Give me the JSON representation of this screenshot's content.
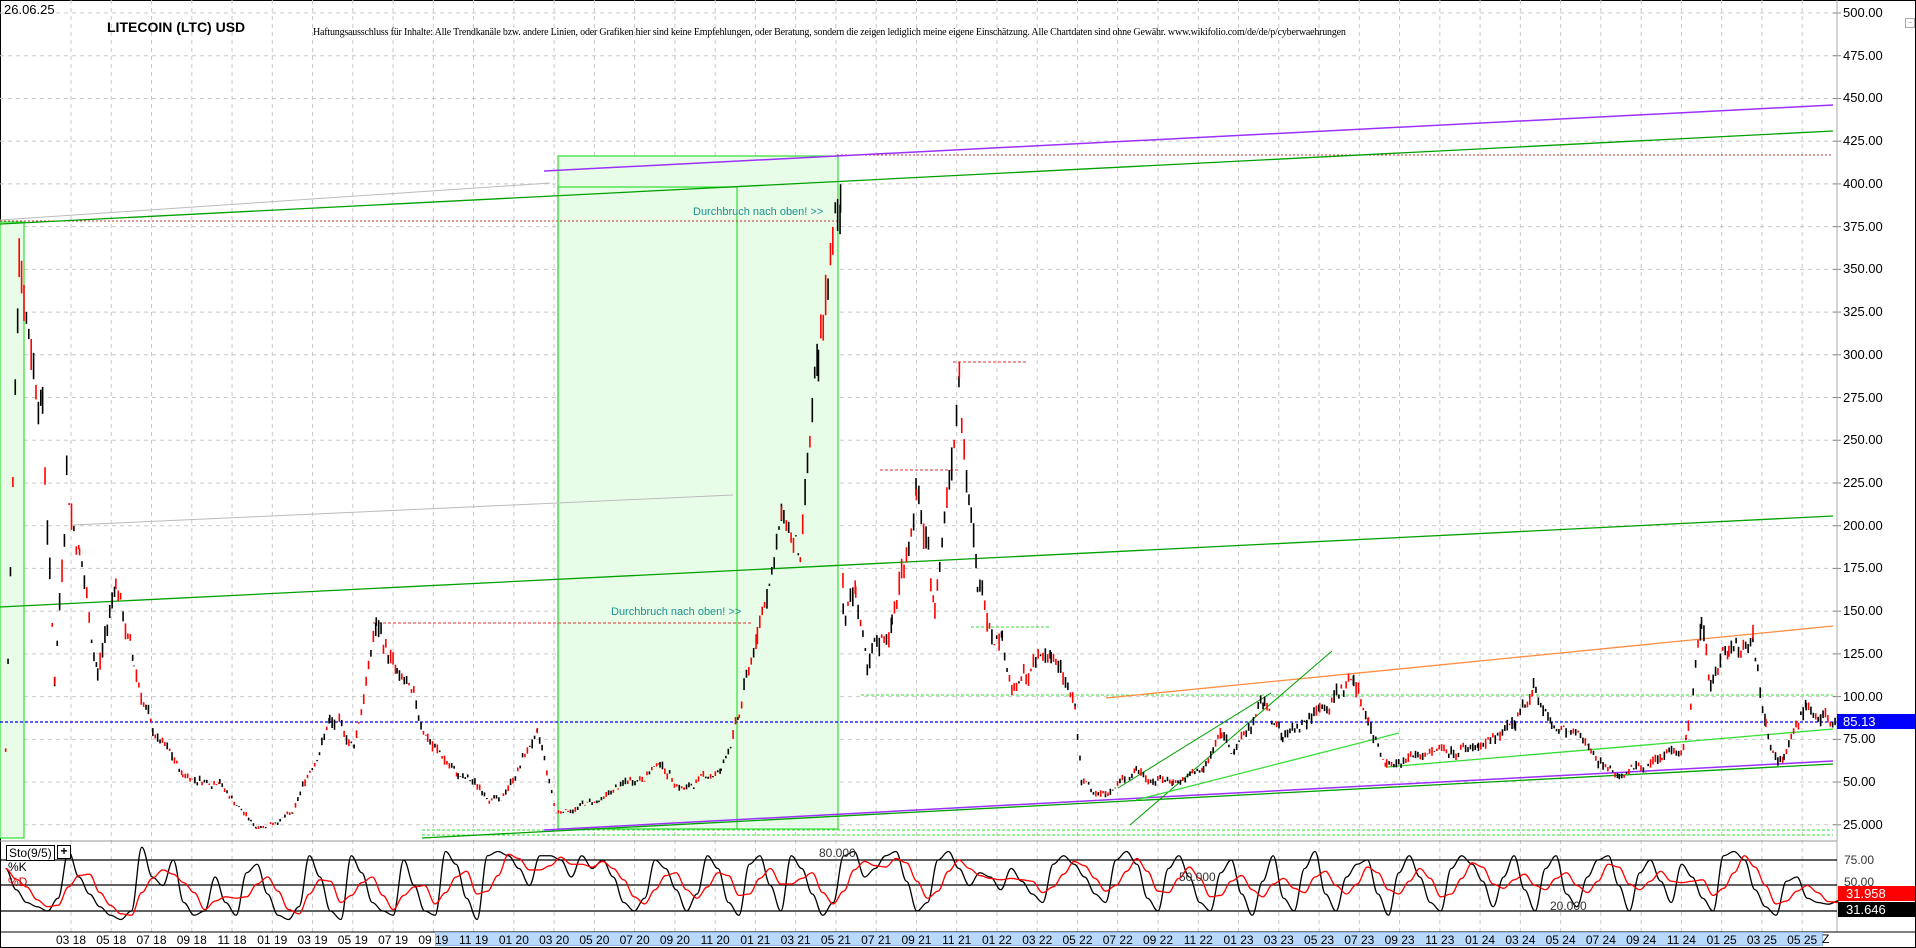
{
  "header": {
    "date": "26.06.25",
    "title": "LITECOIN (LTC) USD",
    "disclaimer": "Haftungsausschluss für Inhalte: Alle Trendkanäle bzw. andere Linien, oder Grafiken hier sind keine Empfehlungen, oder Beratung, sondern die zeigen lediglich meine eigene Einschätzung. Alle Chartdaten sind ohne Gewähr.  www.wikifolio.com/de/de/p/cyberwaehrungen"
  },
  "annotations": {
    "breakout_1": "Durchbruch nach oben! >>",
    "breakout_2": "Durchbruch nach oben! >>"
  },
  "colors": {
    "up_bar": "#000000",
    "down_bar": "#ff0000",
    "last_price": "#0000ff",
    "trend_green": "#00a000",
    "trend_purple": "#9b30ff",
    "trend_orange": "#ff8c40",
    "zone_fill": "#e8fde8",
    "resistance_red": "#e03030"
  },
  "chart_data": [
    {
      "type": "ohlc",
      "ylim": [
        25,
        500
      ],
      "y_tick_labels": [
        "500.00",
        "475.00",
        "450.00",
        "425.00",
        "400.00",
        "375.00",
        "350.00",
        "325.00",
        "300.00",
        "275.00",
        "250.00",
        "225.00",
        "200.00",
        "175.00",
        "150.00",
        "125.00",
        "100.00",
        "75.00",
        "50.00",
        "25.000"
      ],
      "y_tick_values": [
        500,
        475,
        450,
        425,
        400,
        375,
        350,
        325,
        300,
        275,
        250,
        225,
        200,
        175,
        150,
        125,
        100,
        75,
        50,
        25
      ],
      "x_tick_labels": [
        "03 18",
        "05 18",
        "07 18",
        "09 18",
        "11 18",
        "01 19",
        "03 19",
        "05 19",
        "07 19",
        "09 19",
        "11 19",
        "01 20",
        "03 20",
        "05 20",
        "07 20",
        "09 20",
        "11 20",
        "01 21",
        "03 21",
        "05 21",
        "07 21",
        "09 21",
        "11 21",
        "01 22",
        "03 22",
        "05 22",
        "07 22",
        "09 22",
        "11 22",
        "01 23",
        "03 23",
        "05 23",
        "07 23",
        "09 23",
        "11 23",
        "01 24",
        "03 24",
        "05 24",
        "07 24",
        "09 24",
        "11 24",
        "01 25",
        "03 25",
        "05 25"
      ],
      "x_end_label": "Z",
      "grid": true,
      "last_price": "85.13",
      "price_path": [
        [
          "2017-11-24",
          68
        ],
        [
          "2017-12-14",
          361
        ],
        [
          "2018-01-19",
          271
        ],
        [
          "2018-02-07",
          107
        ],
        [
          "2018-02-25",
          232
        ],
        [
          "2018-03-14",
          186
        ],
        [
          "2018-04-11",
          114
        ],
        [
          "2018-05-08",
          168
        ],
        [
          "2018-06-05",
          118
        ],
        [
          "2018-07-03",
          79
        ],
        [
          "2018-08-18",
          54
        ],
        [
          "2018-10-13",
          50
        ],
        [
          "2018-12-07",
          23
        ],
        [
          "2019-02-02",
          32
        ],
        [
          "2019-03-27",
          86
        ],
        [
          "2019-05-03",
          71
        ],
        [
          "2019-06-06",
          142
        ],
        [
          "2019-07-07",
          114
        ],
        [
          "2019-08-23",
          75
        ],
        [
          "2019-10-08",
          54
        ],
        [
          "2019-12-12",
          39
        ],
        [
          "2020-02-06",
          79
        ],
        [
          "2020-03-04",
          32
        ],
        [
          "2020-05-08",
          39
        ],
        [
          "2020-08-09",
          61
        ],
        [
          "2020-09-15",
          46
        ],
        [
          "2020-11-10",
          57
        ],
        [
          "2020-12-07",
          89
        ],
        [
          "2021-01-04",
          136
        ],
        [
          "2021-02-10",
          207
        ],
        [
          "2021-03-08",
          179
        ],
        [
          "2021-04-05",
          293
        ],
        [
          "2021-05-08",
          386
        ],
        [
          "2021-05-12",
          150
        ],
        [
          "2021-05-31",
          164
        ],
        [
          "2021-06-18",
          114
        ],
        [
          "2021-07-25",
          143
        ],
        [
          "2021-09-01",
          221
        ],
        [
          "2021-09-29",
          150
        ],
        [
          "2021-11-05",
          293
        ],
        [
          "2021-11-23",
          207
        ],
        [
          "2021-12-02",
          164
        ],
        [
          "2022-01-09",
          136
        ],
        [
          "2022-01-27",
          104
        ],
        [
          "2022-03-22",
          125
        ],
        [
          "2022-04-28",
          93
        ],
        [
          "2022-05-07",
          50
        ],
        [
          "2022-06-13",
          43
        ],
        [
          "2022-07-29",
          57
        ],
        [
          "2022-09-24",
          50
        ],
        [
          "2022-11-09",
          57
        ],
        [
          "2022-12-06",
          79
        ],
        [
          "2022-12-25",
          68
        ],
        [
          "2023-02-10",
          96
        ],
        [
          "2023-03-07",
          75
        ],
        [
          "2023-05-02",
          93
        ],
        [
          "2023-06-23",
          111
        ],
        [
          "2023-07-15",
          86
        ],
        [
          "2023-08-12",
          61
        ],
        [
          "2023-10-16",
          68
        ],
        [
          "2023-12-29",
          71
        ],
        [
          "2024-02-24",
          82
        ],
        [
          "2024-03-21",
          107
        ],
        [
          "2024-04-18",
          82
        ],
        [
          "2024-06-13",
          71
        ],
        [
          "2024-07-29",
          54
        ],
        [
          "2024-10-02",
          64
        ],
        [
          "2024-11-08",
          75
        ],
        [
          "2024-12-01",
          143
        ],
        [
          "2024-12-15",
          107
        ],
        [
          "2025-01-12",
          129
        ],
        [
          "2025-02-18",
          136
        ],
        [
          "2025-03-07",
          86
        ],
        [
          "2025-04-04",
          64
        ],
        [
          "2025-05-07",
          96
        ],
        [
          "2025-05-29",
          86
        ],
        [
          "2025-06-26",
          85
        ]
      ]
    },
    {
      "type": "line",
      "title": "Sto(9/5)",
      "series": [
        {
          "name": "%K",
          "last_value": "31.646"
        },
        {
          "name": "%D",
          "last_value": "31.958"
        }
      ],
      "levels": [
        "80.000",
        "50.000",
        "20.000"
      ],
      "y_tick_labels": [
        "75.00",
        "50.00"
      ],
      "k_values": [
        70,
        45,
        30,
        25,
        20,
        35,
        90,
        60,
        40,
        25,
        15,
        10,
        20,
        95,
        60,
        50,
        80,
        30,
        15,
        20,
        60,
        30,
        15,
        65,
        75,
        40,
        15,
        10,
        25,
        85,
        60,
        20,
        10,
        85,
        65,
        30,
        20,
        15,
        80,
        50,
        20,
        15,
        90,
        75,
        35,
        10,
        85,
        90,
        85,
        70,
        50,
        85,
        85,
        80,
        60,
        85,
        70,
        80,
        60,
        30,
        20,
        35,
        80,
        70,
        45,
        20,
        40,
        85,
        70,
        30,
        15,
        75,
        85,
        50,
        20,
        85,
        70,
        40,
        15,
        30,
        85,
        90,
        60,
        70,
        85,
        90,
        55,
        20,
        30,
        80,
        90,
        70,
        50,
        65,
        60,
        45,
        70,
        55,
        40,
        30,
        75,
        85,
        75,
        60,
        40,
        30,
        80,
        90,
        75,
        35,
        20,
        70,
        85,
        60,
        30,
        20,
        65,
        80,
        40,
        15,
        55,
        85,
        35,
        20,
        70,
        90,
        40,
        20,
        60,
        75,
        80,
        40,
        15,
        65,
        85,
        60,
        30,
        20,
        70,
        85,
        75,
        55,
        25,
        60,
        85,
        45,
        20,
        70,
        85,
        40,
        25,
        60,
        80,
        85,
        50,
        20,
        65,
        80,
        55,
        30,
        75,
        60,
        35,
        20,
        85,
        90,
        80,
        45,
        25,
        15,
        55,
        60,
        35,
        30,
        28,
        32
      ]
    }
  ]
}
